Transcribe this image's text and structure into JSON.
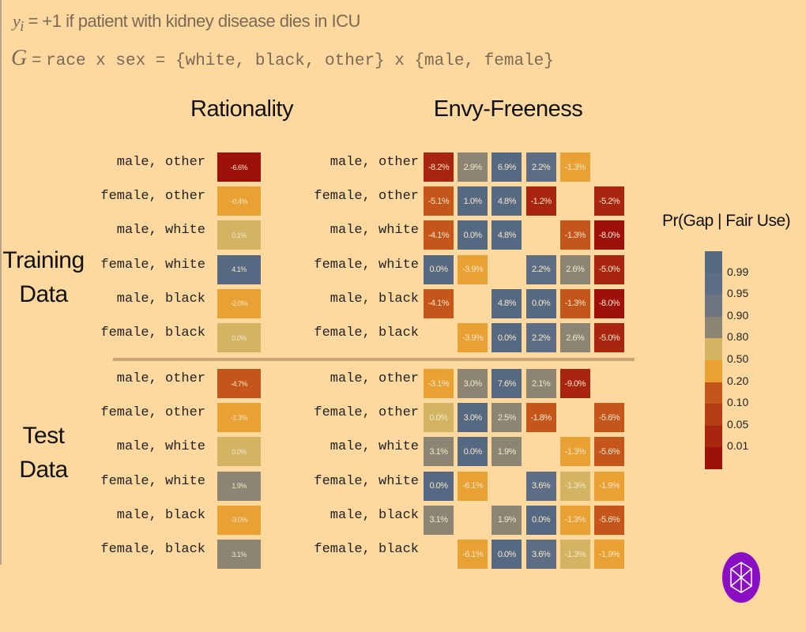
{
  "header": {
    "line1_var": "y",
    "line1_sub": "i",
    "line1_text": " = +1 if patient with kidney disease dies in ICU",
    "line2_symbol": "G",
    "line2_eq1": " = ",
    "line2_text": "race x sex = {white, black, other} x {male, female}"
  },
  "titles": {
    "rationality": "Rationality",
    "envy_freeness": "Envy-Freeness"
  },
  "sections": {
    "training": [
      "Training",
      "Data"
    ],
    "test": [
      "Test",
      "Data"
    ]
  },
  "row_labels": [
    "male, other",
    "female, other",
    "male, white",
    "female, white",
    "male, black",
    "female, black"
  ],
  "legend": {
    "title": "Pr(Gap | Fair Use)",
    "ticks": [
      "0.99",
      "0.95",
      "0.90",
      "0.80",
      "0.50",
      "0.20",
      "0.10",
      "0.05",
      "0.01"
    ],
    "colors": [
      "#566983",
      "#5d6d85",
      "#6e7481",
      "#8c8574",
      "#d2b462",
      "#e8a132",
      "#c5561b",
      "#b53d15",
      "#a8250f",
      "#9e100a"
    ]
  },
  "chart_data": {
    "type": "heatmap",
    "note_levels": "level = index into legend.colors",
    "rationality": {
      "training": [
        {
          "v": "-6.6%",
          "level": 9
        },
        {
          "v": "-0.4%",
          "level": 5
        },
        {
          "v": "0.1%",
          "level": 4
        },
        {
          "v": "4.1%",
          "level": 0
        },
        {
          "v": "-2.0%",
          "level": 5
        },
        {
          "v": "0.0%",
          "level": 4
        }
      ],
      "test": [
        {
          "v": "-4.7%",
          "level": 6
        },
        {
          "v": "-1.3%",
          "level": 5
        },
        {
          "v": "0.0%",
          "level": 4
        },
        {
          "v": "1.9%",
          "level": 3
        },
        {
          "v": "-3.0%",
          "level": 5
        },
        {
          "v": "3.1%",
          "level": 3
        }
      ]
    },
    "envy_freeness": {
      "training": [
        [
          {
            "v": "-8.2%",
            "level": 8
          },
          {
            "v": "2.9%",
            "level": 3
          },
          {
            "v": "6.9%",
            "level": 0
          },
          {
            "v": "2.2%",
            "level": 1
          },
          {
            "v": "-1.3%",
            "level": 5
          },
          null
        ],
        [
          {
            "v": "-5.1%",
            "level": 6
          },
          {
            "v": "1.0%",
            "level": 0
          },
          {
            "v": "4.8%",
            "level": 0
          },
          {
            "v": "-1.2%",
            "level": 8
          },
          null,
          {
            "v": "-5.2%",
            "level": 8
          }
        ],
        [
          {
            "v": "-4.1%",
            "level": 6
          },
          {
            "v": "0.0%",
            "level": 0
          },
          {
            "v": "4.8%",
            "level": 0
          },
          null,
          {
            "v": "-1.3%",
            "level": 6
          },
          {
            "v": "-8.0%",
            "level": 9
          }
        ],
        [
          {
            "v": "0.0%",
            "level": 0
          },
          {
            "v": "-3.9%",
            "level": 5
          },
          null,
          {
            "v": "2.2%",
            "level": 1
          },
          {
            "v": "2.6%",
            "level": 3
          },
          {
            "v": "-5.0%",
            "level": 8
          }
        ],
        [
          {
            "v": "-4.1%",
            "level": 6
          },
          null,
          {
            "v": "4.8%",
            "level": 0
          },
          {
            "v": "0.0%",
            "level": 0
          },
          {
            "v": "-1.3%",
            "level": 6
          },
          {
            "v": "-8.0%",
            "level": 9
          }
        ],
        [
          null,
          {
            "v": "-3.9%",
            "level": 5
          },
          {
            "v": "0.0%",
            "level": 0
          },
          {
            "v": "2.2%",
            "level": 1
          },
          {
            "v": "2.6%",
            "level": 3
          },
          {
            "v": "-5.0%",
            "level": 8
          }
        ]
      ],
      "test": [
        [
          {
            "v": "-3.1%",
            "level": 5
          },
          {
            "v": "3.0%",
            "level": 3
          },
          {
            "v": "7.6%",
            "level": 0
          },
          {
            "v": "2.1%",
            "level": 3
          },
          {
            "v": "-9.0%",
            "level": 8
          },
          null
        ],
        [
          {
            "v": "0.0%",
            "level": 4
          },
          {
            "v": "3.0%",
            "level": 0
          },
          {
            "v": "2.5%",
            "level": 3
          },
          {
            "v": "-1.8%",
            "level": 6
          },
          null,
          {
            "v": "-5.6%",
            "level": 6
          }
        ],
        [
          {
            "v": "3.1%",
            "level": 3
          },
          {
            "v": "0.0%",
            "level": 0
          },
          {
            "v": "1.9%",
            "level": 3
          },
          null,
          {
            "v": "-1.3%",
            "level": 5
          },
          {
            "v": "-5.6%",
            "level": 6
          }
        ],
        [
          {
            "v": "0.0%",
            "level": 0
          },
          {
            "v": "-6.1%",
            "level": 5
          },
          null,
          {
            "v": "3.6%",
            "level": 1
          },
          {
            "v": "-1.3%",
            "level": 4
          },
          {
            "v": "-1.9%",
            "level": 5
          }
        ],
        [
          {
            "v": "3.1%",
            "level": 3
          },
          null,
          {
            "v": "1.9%",
            "level": 3
          },
          {
            "v": "0.0%",
            "level": 0
          },
          {
            "v": "-1.3%",
            "level": 5
          },
          {
            "v": "-5.6%",
            "level": 6
          }
        ],
        [
          null,
          {
            "v": "-6.1%",
            "level": 5
          },
          {
            "v": "0.0%",
            "level": 0
          },
          {
            "v": "3.6%",
            "level": 1
          },
          {
            "v": "-1.3%",
            "level": 4
          },
          {
            "v": "-1.9%",
            "level": 5
          }
        ]
      ]
    }
  }
}
